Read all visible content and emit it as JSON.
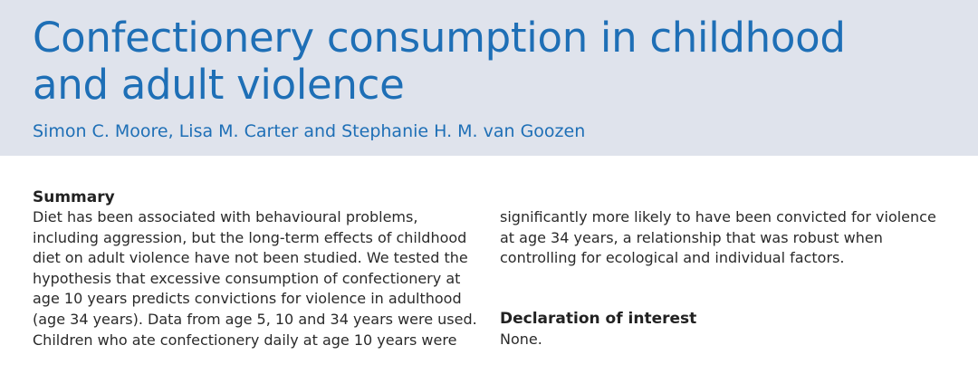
{
  "article": {
    "title_lines": [
      "Confectionery consumption in childhood",
      "and adult violence"
    ],
    "authors": "Simon C. Moore, Lisa M. Carter and Stephanie H. M. van Goozen"
  },
  "summary": {
    "heading": "Summary",
    "left_lines": [
      "Diet has been associated with behavioural problems,",
      "including aggression, but the long-term effects of childhood",
      "diet on adult violence have not been studied. We tested the",
      "hypothesis that excessive consumption of confectionery at",
      "age 10 years predicts convictions for violence in adulthood",
      "(age 34 years). Data from age 5, 10 and 34 years were used.",
      "Children who ate confectionery daily at age 10 years were"
    ],
    "right_lines": [
      "significantly more likely to have been convicted for violence",
      "at age 34 years, a relationship that was robust when",
      "controlling for ecological and individual factors."
    ]
  },
  "declaration": {
    "heading": "Declaration of interest",
    "text": "None."
  },
  "colors": {
    "header_background": "#dfe3ec",
    "title_blue": "#1e6fb6",
    "body_text": "#2a2a2a"
  }
}
